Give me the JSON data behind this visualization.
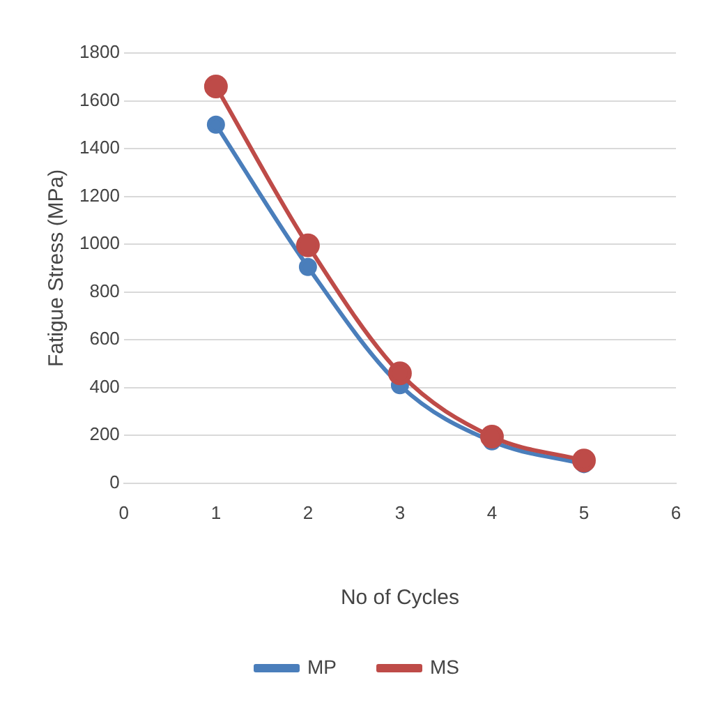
{
  "chart_data": {
    "type": "line",
    "xlabel": "No of Cycles",
    "ylabel": "Fatigue Stress (MPa)",
    "x": [
      1,
      2,
      3,
      4,
      5
    ],
    "series": [
      {
        "name": "MP",
        "color": "#4a7ebb",
        "values": [
          1500,
          905,
          410,
          175,
          80
        ]
      },
      {
        "name": "MS",
        "color": "#be4b48",
        "values": [
          1660,
          995,
          460,
          195,
          95
        ]
      }
    ],
    "xlim": [
      0,
      6
    ],
    "xticks": [
      0,
      1,
      2,
      3,
      4,
      5,
      6
    ],
    "ylim": [
      0,
      1800
    ],
    "yticks": [
      0,
      200,
      400,
      600,
      800,
      1000,
      1200,
      1400,
      1600,
      1800
    ],
    "grid": "y",
    "legend": "bottom",
    "marker": "circle",
    "line_style": "solid"
  }
}
